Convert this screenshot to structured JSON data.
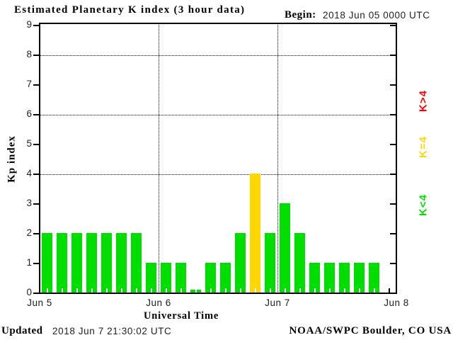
{
  "title": "Estimated Planetary K index (3 hour data)",
  "begin": {
    "label": "Begin:",
    "value": "2018 Jun 05 0000 UTC"
  },
  "y_axis": {
    "label": "Kp index",
    "ticks": [
      "0",
      "1",
      "2",
      "3",
      "4",
      "5",
      "6",
      "7",
      "8",
      "9"
    ]
  },
  "x_axis": {
    "label": "Universal Time",
    "day_labels": [
      "Jun 5",
      "Jun 6",
      "Jun 7",
      "Jun 8"
    ]
  },
  "legend": [
    {
      "label": "K>4",
      "color": "#ff0000"
    },
    {
      "label": "K=4",
      "color": "#ffd700"
    },
    {
      "label": "K<4",
      "color": "#00de00"
    }
  ],
  "footer": {
    "updated_label": "Updated",
    "updated_value": "2018 Jun  7 21:30:02 UTC",
    "credit": "NOAA/SWPC Boulder, CO USA"
  },
  "chart_data": {
    "type": "bar",
    "title": "Estimated Planetary K index (3 hour data)",
    "begin": "2018 Jun 05 0000 UTC",
    "xlabel": "Universal Time",
    "ylabel": "Kp index",
    "ylim": [
      0,
      9
    ],
    "interval_hours": 3,
    "slots_per_day": 8,
    "total_slots": 24,
    "x_day_ticks": [
      "Jun 5",
      "Jun 6",
      "Jun 7",
      "Jun 8"
    ],
    "gridlines_y": [
      4,
      6,
      8
    ],
    "grid": "dotted",
    "legend_position": "right",
    "values": [
      2,
      2,
      2,
      2,
      2,
      2,
      2,
      1,
      1,
      1,
      0,
      1,
      1,
      2,
      4,
      2,
      3,
      2,
      1,
      1,
      1,
      1,
      1
    ],
    "color_rule": {
      "below_4": "#00de00",
      "equal_4": "#ffd700",
      "above_4": "#ff0000"
    }
  }
}
